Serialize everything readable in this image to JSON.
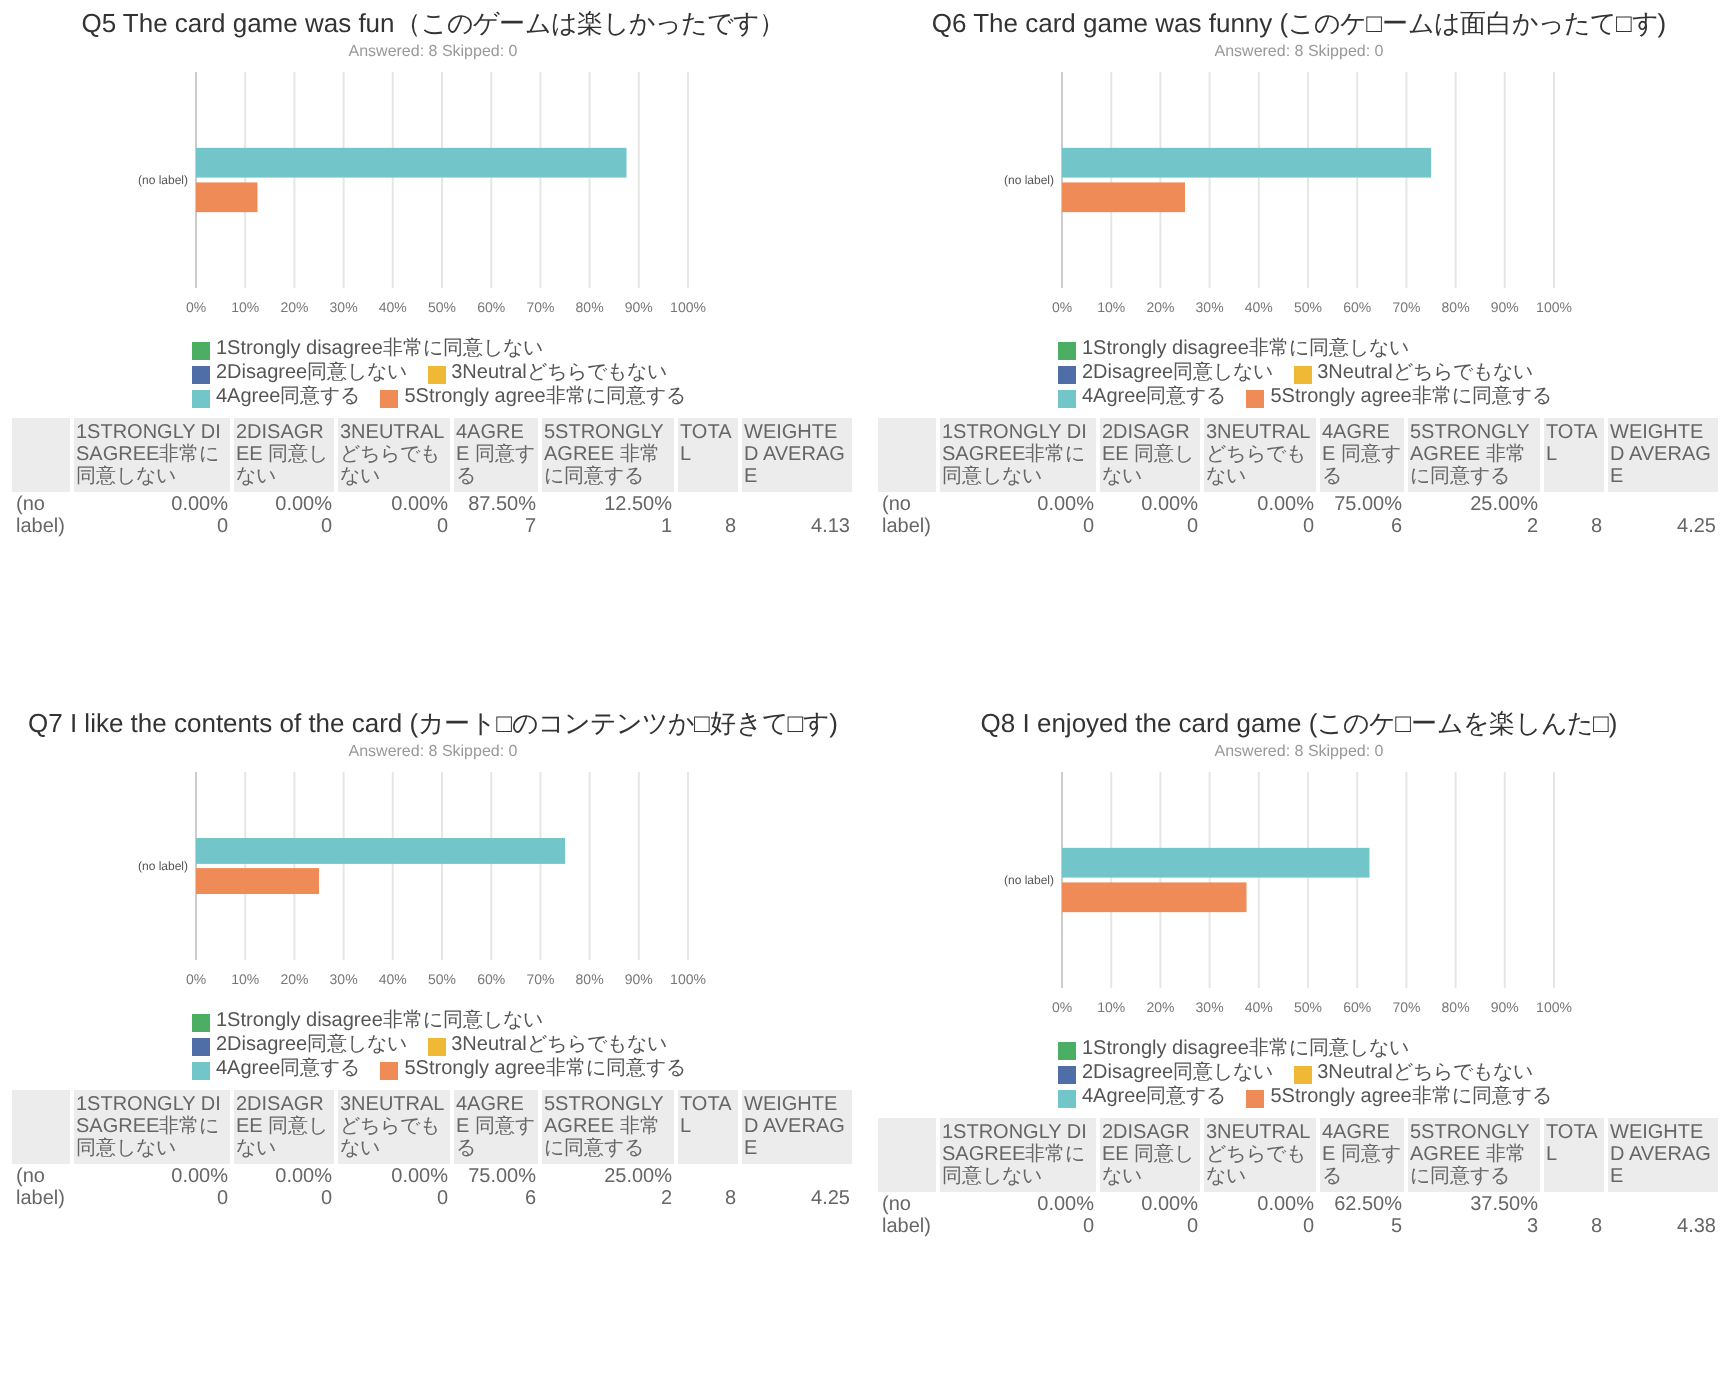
{
  "chart_data": [
    {
      "type": "bar",
      "orientation": "horizontal",
      "title": "Q5 The card game was fun（このゲームは楽しかったです）",
      "subtitle": "Answered: 8    Skipped: 0",
      "categories": [
        "(no label)"
      ],
      "xlim": [
        0,
        100
      ],
      "xticks": [
        {
          "value": 0,
          "label": "0%"
        },
        {
          "value": 10,
          "label": "10%"
        },
        {
          "value": 20,
          "label": "20%"
        },
        {
          "value": 30,
          "label": "30%"
        },
        {
          "value": 40,
          "label": "40%"
        },
        {
          "value": 50,
          "label": "50%"
        },
        {
          "value": 60,
          "label": "60%"
        },
        {
          "value": 70,
          "label": "70%"
        },
        {
          "value": 80,
          "label": "80%"
        },
        {
          "value": 90,
          "label": "90%"
        },
        {
          "value": 100,
          "label": "100%"
        }
      ],
      "grid": "x",
      "legend": "bottom",
      "series": [
        {
          "name": "1Strongly disagree非常に同意しない",
          "color": "#4cae63",
          "values": [
            0
          ]
        },
        {
          "name": "2Disagree同意しない",
          "color": "#4f6ea8",
          "values": [
            0
          ]
        },
        {
          "name": "3Neutralどちらでもない",
          "color": "#f0b935",
          "values": [
            0
          ]
        },
        {
          "name": "4Agree同意する",
          "color": "#72c5c8",
          "values": [
            87.5
          ]
        },
        {
          "name": "5Strongly agree非常に同意する",
          "color": "#ef8b56",
          "values": [
            12.5
          ]
        }
      ],
      "annotations": [
        "1STRONGLY DISAGREE非常に同意しない",
        "2DISAGREE 同意しない",
        "3NEUTRALどちらでもない",
        "4AGREE 同意する",
        "5STRONGLY AGREE 非常に同意する",
        "TOTAL",
        "WEIGHTED AVERAGE",
        "0.00%",
        "0.00%",
        "0.00%",
        "87.50%",
        "12.50%",
        "0",
        "0",
        "0",
        "7",
        "1",
        "8",
        "4.13"
      ]
    },
    {
      "type": "bar",
      "orientation": "horizontal",
      "title": "Q6 The card game was funny (このケ□ームは面白かったて□す)",
      "subtitle": "Answered: 8    Skipped: 0",
      "categories": [
        "(no label)"
      ],
      "xlim": [
        0,
        100
      ],
      "xticks": [
        {
          "value": 0,
          "label": "0%"
        },
        {
          "value": 10,
          "label": "10%"
        },
        {
          "value": 20,
          "label": "20%"
        },
        {
          "value": 30,
          "label": "30%"
        },
        {
          "value": 40,
          "label": "40%"
        },
        {
          "value": 50,
          "label": "50%"
        },
        {
          "value": 60,
          "label": "60%"
        },
        {
          "value": 70,
          "label": "70%"
        },
        {
          "value": 80,
          "label": "80%"
        },
        {
          "value": 90,
          "label": "90%"
        },
        {
          "value": 100,
          "label": "100%"
        }
      ],
      "grid": "x",
      "legend": "bottom",
      "series": [
        {
          "name": "1Strongly disagree非常に同意しない",
          "color": "#4cae63",
          "values": [
            0
          ]
        },
        {
          "name": "2Disagree同意しない",
          "color": "#4f6ea8",
          "values": [
            0
          ]
        },
        {
          "name": "3Neutralどちらでもない",
          "color": "#f0b935",
          "values": [
            0
          ]
        },
        {
          "name": "4Agree同意する",
          "color": "#72c5c8",
          "values": [
            75
          ]
        },
        {
          "name": "5Strongly agree非常に同意する",
          "color": "#ef8b56",
          "values": [
            25
          ]
        }
      ],
      "annotations": [
        "1STRONGLY DISAGREE非常に同意しない",
        "2DISAGREE 同意しない",
        "3NEUTRALどちらでもない",
        "4AGREE 同意する",
        "5STRONGLY AGREE 非常に同意する",
        "TOTAL",
        "WEIGHTED AVERAGE",
        "0.00%",
        "0.00%",
        "0.00%",
        "75.00%",
        "25.00%",
        "0",
        "0",
        "0",
        "6",
        "2",
        "8",
        "4.25"
      ]
    },
    {
      "type": "bar",
      "orientation": "horizontal",
      "title": "Q7 I like the contents of the card (カート□のコンテンツか□好きて□す)",
      "subtitle": "Answered: 8    Skipped: 0",
      "categories": [
        "(no label)"
      ],
      "xlim": [
        0,
        100
      ],
      "xticks": [
        {
          "value": 0,
          "label": "0%"
        },
        {
          "value": 10,
          "label": "10%"
        },
        {
          "value": 20,
          "label": "20%"
        },
        {
          "value": 30,
          "label": "30%"
        },
        {
          "value": 40,
          "label": "40%"
        },
        {
          "value": 50,
          "label": "50%"
        },
        {
          "value": 60,
          "label": "60%"
        },
        {
          "value": 70,
          "label": "70%"
        },
        {
          "value": 80,
          "label": "80%"
        },
        {
          "value": 90,
          "label": "90%"
        },
        {
          "value": 100,
          "label": "100%"
        }
      ],
      "grid": "x",
      "legend": "bottom",
      "series": [
        {
          "name": "1Strongly disagree非常に同意しない",
          "color": "#4cae63",
          "values": [
            0
          ]
        },
        {
          "name": "2Disagree同意しない",
          "color": "#4f6ea8",
          "values": [
            0
          ]
        },
        {
          "name": "3Neutralどちらでもない",
          "color": "#f0b935",
          "values": [
            0
          ]
        },
        {
          "name": "4Agree同意する",
          "color": "#72c5c8",
          "values": [
            75
          ]
        },
        {
          "name": "5Strongly agree非常に同意する",
          "color": "#ef8b56",
          "values": [
            25
          ]
        }
      ],
      "annotations": [
        "1STRONGLY DISAGREE非常に同意しない",
        "2DISAGREE 同意しない",
        "3NEUTRALどちらでもない",
        "4AGREE 同意する",
        "5STRONGLY AGREE 非常に同意する",
        "TOTAL",
        "WEIGHTED AVERAGE",
        "0.00%",
        "0.00%",
        "0.00%",
        "75.00%",
        "25.00%",
        "0",
        "0",
        "0",
        "6",
        "2",
        "8",
        "4.25"
      ]
    },
    {
      "type": "bar",
      "orientation": "horizontal",
      "title": "Q8 I enjoyed the card game (このケ□ームを楽しんた□)",
      "subtitle": "Answered: 8    Skipped: 0",
      "categories": [
        "(no label)"
      ],
      "xlim": [
        0,
        100
      ],
      "xticks": [
        {
          "value": 0,
          "label": "0%"
        },
        {
          "value": 10,
          "label": "10%"
        },
        {
          "value": 20,
          "label": "20%"
        },
        {
          "value": 30,
          "label": "30%"
        },
        {
          "value": 40,
          "label": "40%"
        },
        {
          "value": 50,
          "label": "50%"
        },
        {
          "value": 60,
          "label": "60%"
        },
        {
          "value": 70,
          "label": "70%"
        },
        {
          "value": 80,
          "label": "80%"
        },
        {
          "value": 90,
          "label": "90%"
        },
        {
          "value": 100,
          "label": "100%"
        }
      ],
      "grid": "x",
      "legend": "bottom",
      "series": [
        {
          "name": "1Strongly disagree非常に同意しない",
          "color": "#4cae63",
          "values": [
            0
          ]
        },
        {
          "name": "2Disagree同意しない",
          "color": "#4f6ea8",
          "values": [
            0
          ]
        },
        {
          "name": "3Neutralどちらでもない",
          "color": "#f0b935",
          "values": [
            0
          ]
        },
        {
          "name": "4Agree同意する",
          "color": "#72c5c8",
          "values": [
            62.5
          ]
        },
        {
          "name": "5Strongly agree非常に同意する",
          "color": "#ef8b56",
          "values": [
            37.5
          ]
        }
      ],
      "annotations": [
        "1STRONGLY DISAGREE非常に同意しない",
        "2DISAGREE 同意しない",
        "3NEUTRALどちらでもない",
        "4AGREE 同意する",
        "5STRONGLY AGREE 非常に同意する",
        "TOTAL",
        "WEIGHTED AVERAGE",
        "0.00%",
        "0.00%",
        "0.00%",
        "62.50%",
        "37.50%",
        "0",
        "0",
        "0",
        "5",
        "3",
        "8",
        "4.38"
      ]
    }
  ]
}
